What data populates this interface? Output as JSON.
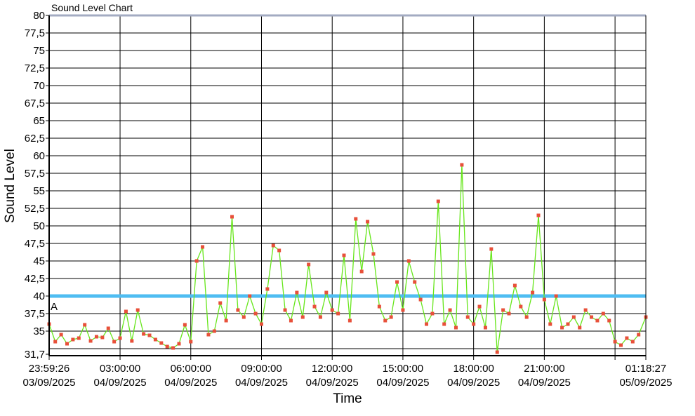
{
  "chart_data": {
    "type": "line",
    "title": "Sound Level Chart",
    "xlabel": "Time",
    "ylabel": "Sound Level",
    "ylim": [
      31.7,
      80
    ],
    "xlim": [
      "03/09/2025 23:59:26",
      "05/09/2025 01:18:27"
    ],
    "grid": true,
    "y_ticks": [
      "31,7",
      "35",
      "37,5",
      "40",
      "42,5",
      "45",
      "47,5",
      "50",
      "52,5",
      "55",
      "57,5",
      "60",
      "62,5",
      "65",
      "67,5",
      "70",
      "72,5",
      "75",
      "77,5",
      "80"
    ],
    "y_tick_values": [
      31.7,
      35,
      37.5,
      40,
      42.5,
      45,
      47.5,
      50,
      52.5,
      55,
      57.5,
      60,
      62.5,
      65,
      67.5,
      70,
      72.5,
      75,
      77.5,
      80
    ],
    "y_grid_values": [
      32.5,
      35,
      37.5,
      40,
      42.5,
      45,
      47.5,
      50,
      52.5,
      55,
      57.5,
      60,
      62.5,
      65,
      67.5,
      70,
      72.5,
      75,
      77.5,
      80
    ],
    "x_ticks": [
      {
        "t": "03/09/2025 23:59:26",
        "time": "23:59:26",
        "date": "03/09/2025"
      },
      {
        "t": "04/09/2025 03:00:00",
        "time": "03:00:00",
        "date": "04/09/2025"
      },
      {
        "t": "04/09/2025 06:00:00",
        "time": "06:00:00",
        "date": "04/09/2025"
      },
      {
        "t": "04/09/2025 09:00:00",
        "time": "09:00:00",
        "date": "04/09/2025"
      },
      {
        "t": "04/09/2025 12:00:00",
        "time": "12:00:00",
        "date": "04/09/2025"
      },
      {
        "t": "04/09/2025 15:00:00",
        "time": "15:00:00",
        "date": "04/09/2025"
      },
      {
        "t": "04/09/2025 18:00:00",
        "time": "18:00:00",
        "date": "04/09/2025"
      },
      {
        "t": "04/09/2025 21:00:00",
        "time": "21:00:00",
        "date": "04/09/2025"
      },
      {
        "t": "05/09/2025 00:00:00",
        "time": "",
        "date": ""
      },
      {
        "t": "05/09/2025 01:18:27",
        "time": "01:18:27",
        "date": "05/09/2025"
      }
    ],
    "threshold": {
      "value": 40,
      "label": "A",
      "color": "#4fbdf2"
    },
    "series": [
      {
        "line_color": "#66e61a",
        "marker_color": "#e8503a",
        "points": [
          [
            "03/09/2025 23:59:26",
            36.0
          ],
          [
            "04/09/2025 00:15:00",
            33.5
          ],
          [
            "04/09/2025 00:30:00",
            34.5
          ],
          [
            "04/09/2025 00:45:00",
            33.2
          ],
          [
            "04/09/2025 01:00:00",
            33.8
          ],
          [
            "04/09/2025 01:15:00",
            34.0
          ],
          [
            "04/09/2025 01:30:00",
            35.9
          ],
          [
            "04/09/2025 01:45:00",
            33.6
          ],
          [
            "04/09/2025 02:00:00",
            34.2
          ],
          [
            "04/09/2025 02:15:00",
            34.1
          ],
          [
            "04/09/2025 02:30:00",
            35.4
          ],
          [
            "04/09/2025 02:45:00",
            33.5
          ],
          [
            "04/09/2025 03:00:00",
            34.0
          ],
          [
            "04/09/2025 03:15:00",
            37.8
          ],
          [
            "04/09/2025 03:30:00",
            33.6
          ],
          [
            "04/09/2025 03:45:00",
            38.0
          ],
          [
            "04/09/2025 04:00:00",
            34.6
          ],
          [
            "04/09/2025 04:15:00",
            34.4
          ],
          [
            "04/09/2025 04:30:00",
            33.8
          ],
          [
            "04/09/2025 04:45:00",
            33.3
          ],
          [
            "04/09/2025 05:00:00",
            32.8
          ],
          [
            "04/09/2025 05:15:00",
            32.6
          ],
          [
            "04/09/2025 05:30:00",
            33.2
          ],
          [
            "04/09/2025 05:45:00",
            35.9
          ],
          [
            "04/09/2025 06:00:00",
            33.5
          ],
          [
            "04/09/2025 06:15:00",
            45.0
          ],
          [
            "04/09/2025 06:30:00",
            47.0
          ],
          [
            "04/09/2025 06:45:00",
            34.5
          ],
          [
            "04/09/2025 07:00:00",
            35.0
          ],
          [
            "04/09/2025 07:15:00",
            39.0
          ],
          [
            "04/09/2025 07:30:00",
            36.5
          ],
          [
            "04/09/2025 07:45:00",
            51.3
          ],
          [
            "04/09/2025 08:00:00",
            38.0
          ],
          [
            "04/09/2025 08:15:00",
            37.0
          ],
          [
            "04/09/2025 08:30:00",
            40.0
          ],
          [
            "04/09/2025 08:45:00",
            37.5
          ],
          [
            "04/09/2025 09:00:00",
            36.0
          ],
          [
            "04/09/2025 09:15:00",
            41.0
          ],
          [
            "04/09/2025 09:30:00",
            47.2
          ],
          [
            "04/09/2025 09:45:00",
            46.5
          ],
          [
            "04/09/2025 10:00:00",
            38.0
          ],
          [
            "04/09/2025 10:15:00",
            36.5
          ],
          [
            "04/09/2025 10:30:00",
            40.5
          ],
          [
            "04/09/2025 10:45:00",
            37.0
          ],
          [
            "04/09/2025 11:00:00",
            44.5
          ],
          [
            "04/09/2025 11:15:00",
            38.5
          ],
          [
            "04/09/2025 11:30:00",
            37.0
          ],
          [
            "04/09/2025 11:45:00",
            40.5
          ],
          [
            "04/09/2025 12:00:00",
            38.0
          ],
          [
            "04/09/2025 12:15:00",
            37.5
          ],
          [
            "04/09/2025 12:30:00",
            45.8
          ],
          [
            "04/09/2025 12:45:00",
            36.5
          ],
          [
            "04/09/2025 13:00:00",
            51.0
          ],
          [
            "04/09/2025 13:15:00",
            43.5
          ],
          [
            "04/09/2025 13:30:00",
            50.6
          ],
          [
            "04/09/2025 13:45:00",
            46.0
          ],
          [
            "04/09/2025 14:00:00",
            38.5
          ],
          [
            "04/09/2025 14:15:00",
            36.5
          ],
          [
            "04/09/2025 14:30:00",
            37.0
          ],
          [
            "04/09/2025 14:45:00",
            42.0
          ],
          [
            "04/09/2025 15:00:00",
            38.0
          ],
          [
            "04/09/2025 15:15:00",
            45.0
          ],
          [
            "04/09/2025 15:30:00",
            42.0
          ],
          [
            "04/09/2025 15:45:00",
            39.5
          ],
          [
            "04/09/2025 16:00:00",
            36.0
          ],
          [
            "04/09/2025 16:15:00",
            37.5
          ],
          [
            "04/09/2025 16:30:00",
            53.5
          ],
          [
            "04/09/2025 16:45:00",
            36.0
          ],
          [
            "04/09/2025 17:00:00",
            38.0
          ],
          [
            "04/09/2025 17:15:00",
            35.5
          ],
          [
            "04/09/2025 17:30:00",
            58.7
          ],
          [
            "04/09/2025 17:45:00",
            37.0
          ],
          [
            "04/09/2025 18:00:00",
            36.0
          ],
          [
            "04/09/2025 18:15:00",
            38.5
          ],
          [
            "04/09/2025 18:30:00",
            35.5
          ],
          [
            "04/09/2025 18:45:00",
            46.7
          ],
          [
            "04/09/2025 19:00:00",
            32.0
          ],
          [
            "04/09/2025 19:15:00",
            38.0
          ],
          [
            "04/09/2025 19:30:00",
            37.5
          ],
          [
            "04/09/2025 19:45:00",
            41.5
          ],
          [
            "04/09/2025 20:00:00",
            38.5
          ],
          [
            "04/09/2025 20:15:00",
            37.0
          ],
          [
            "04/09/2025 20:30:00",
            40.5
          ],
          [
            "04/09/2025 20:45:00",
            51.5
          ],
          [
            "04/09/2025 21:00:00",
            39.5
          ],
          [
            "04/09/2025 21:15:00",
            36.0
          ],
          [
            "04/09/2025 21:30:00",
            40.0
          ],
          [
            "04/09/2025 21:45:00",
            35.5
          ],
          [
            "04/09/2025 22:00:00",
            36.0
          ],
          [
            "04/09/2025 22:15:00",
            37.0
          ],
          [
            "04/09/2025 22:30:00",
            35.5
          ],
          [
            "04/09/2025 22:45:00",
            38.0
          ],
          [
            "04/09/2025 23:00:00",
            37.0
          ],
          [
            "04/09/2025 23:15:00",
            36.5
          ],
          [
            "04/09/2025 23:30:00",
            37.5
          ],
          [
            "04/09/2025 23:45:00",
            36.5
          ],
          [
            "05/09/2025 00:00:00",
            33.5
          ],
          [
            "05/09/2025 00:15:00",
            33.0
          ],
          [
            "05/09/2025 00:30:00",
            34.0
          ],
          [
            "05/09/2025 00:45:00",
            33.5
          ],
          [
            "05/09/2025 01:00:00",
            34.5
          ],
          [
            "05/09/2025 01:18:27",
            37.0
          ]
        ]
      }
    ]
  }
}
